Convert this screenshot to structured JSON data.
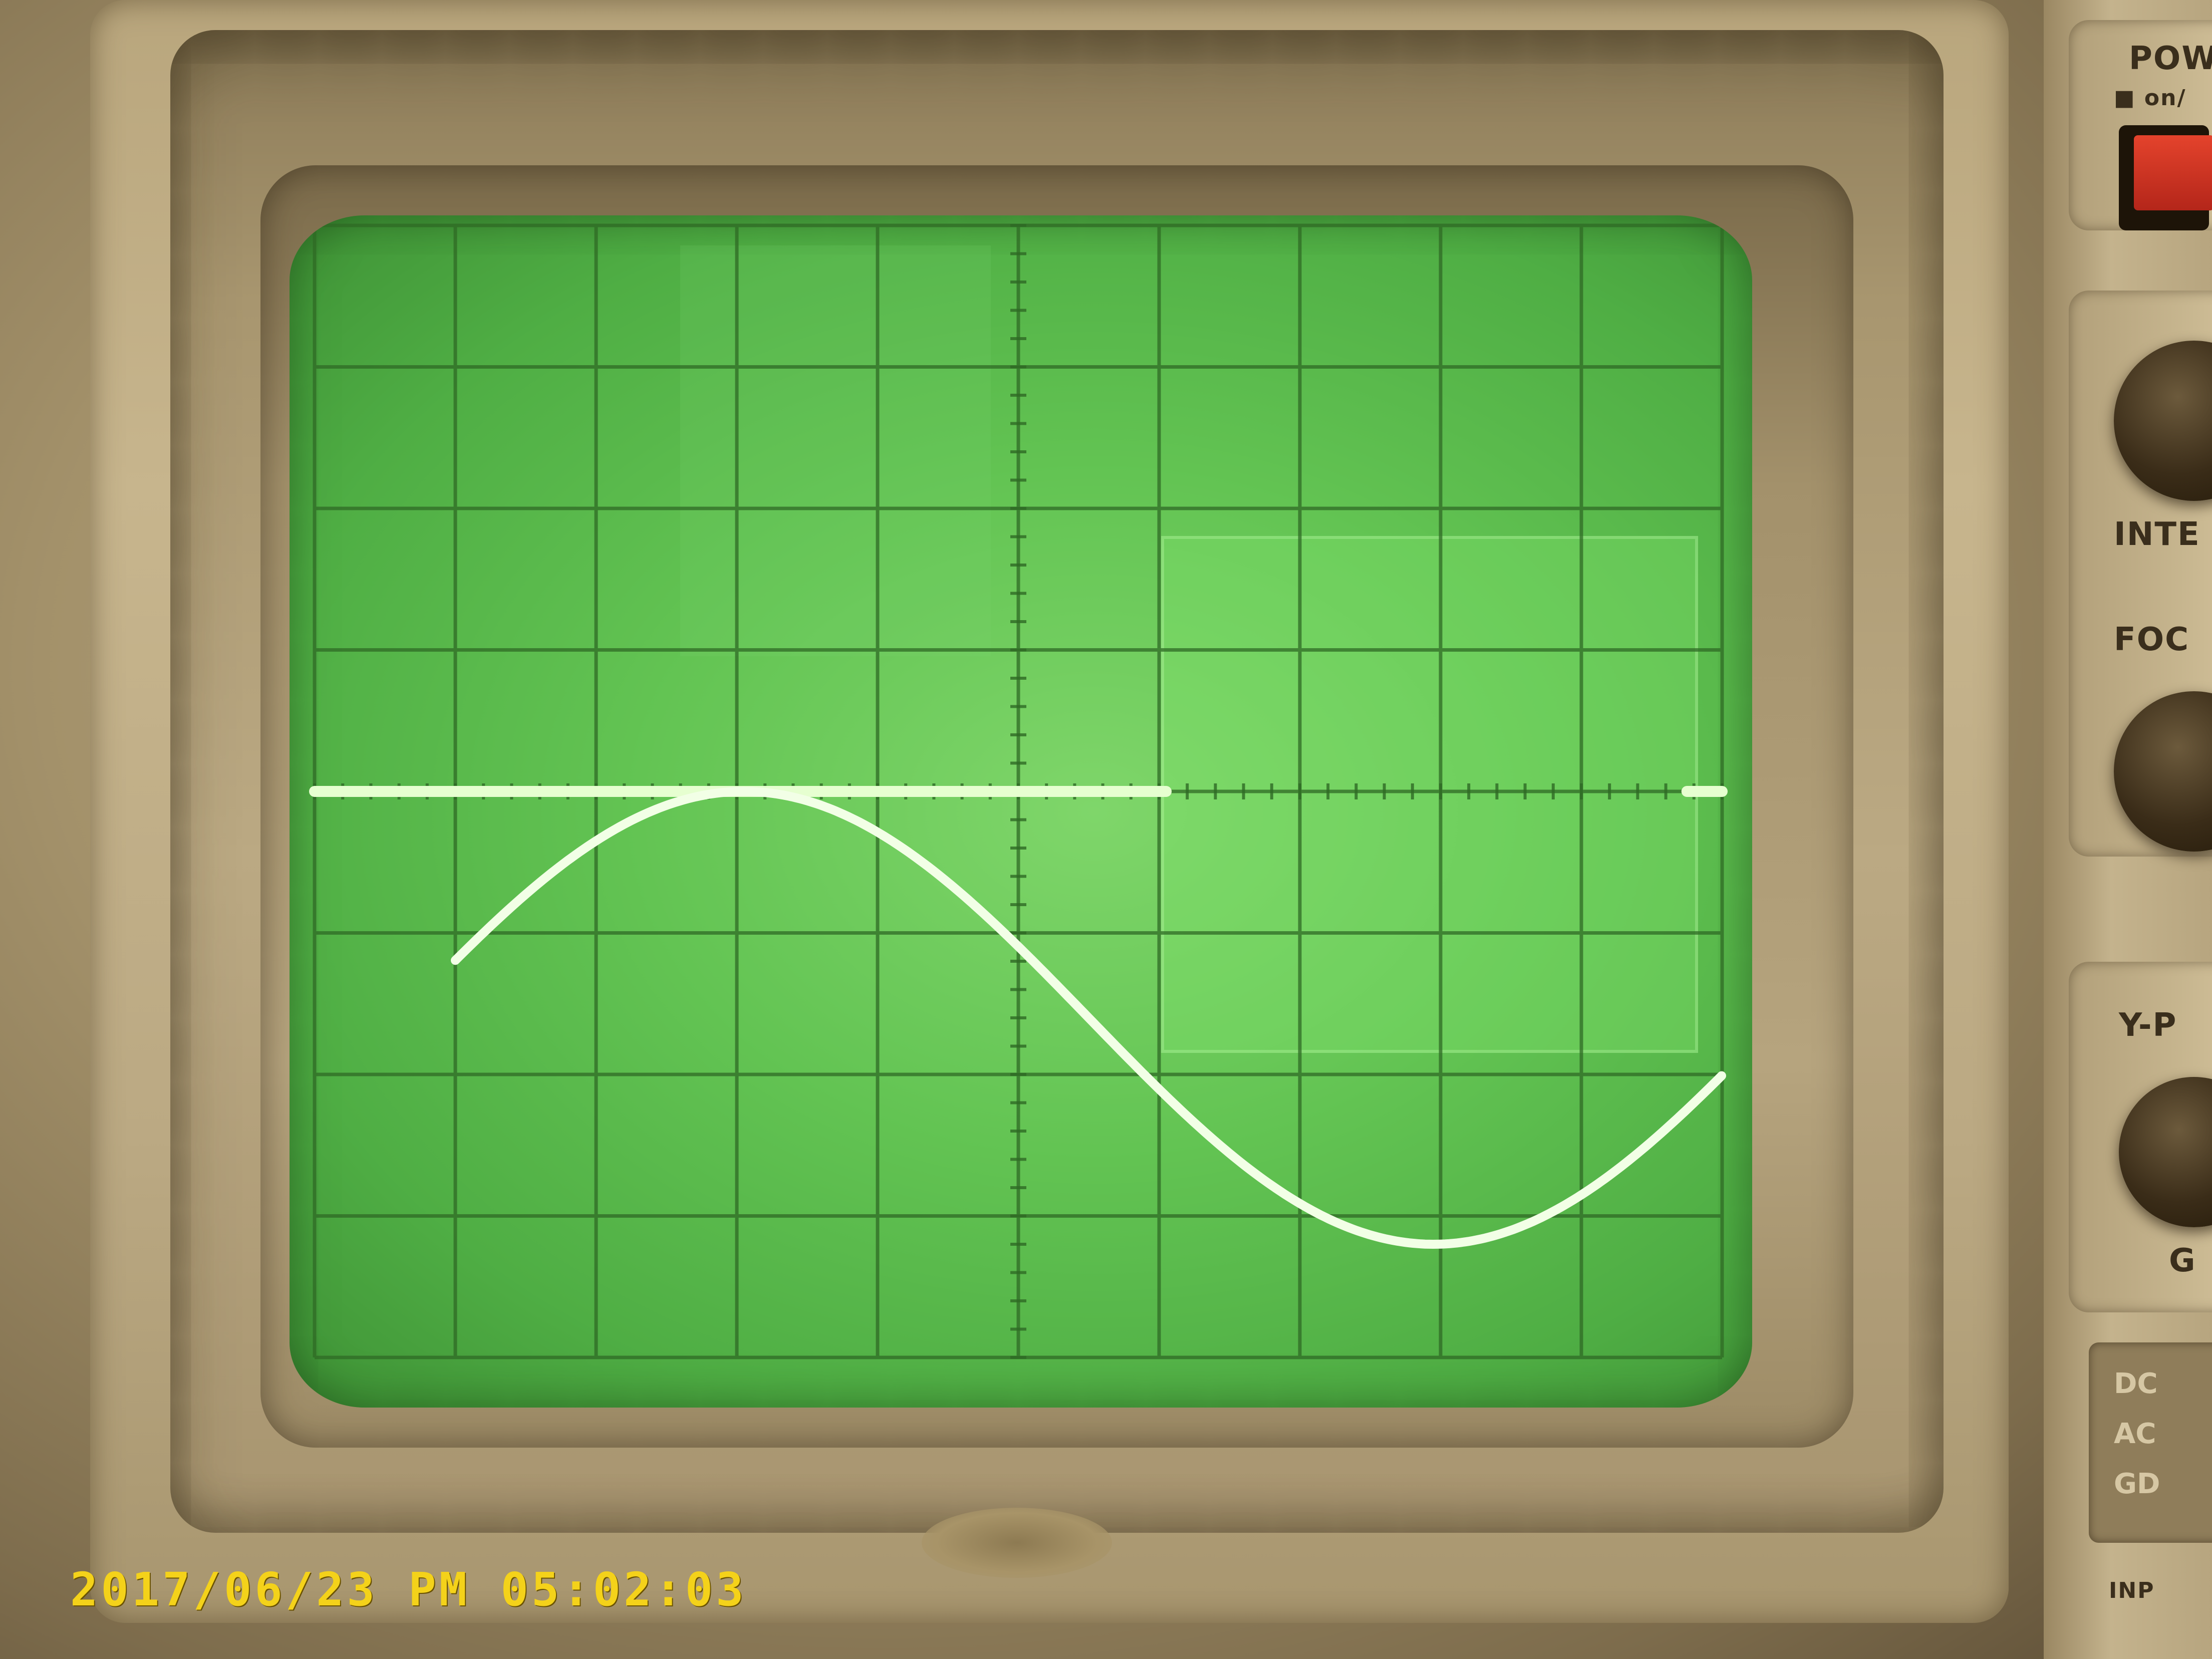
{
  "overlay": {
    "timestamp": "2017/06/23 PM 05:02:03"
  },
  "panel": {
    "power_label": "POW",
    "power_sub_label": "■ on/",
    "intensity_label": "INTE",
    "focus_label": "FOC",
    "y_position_label": "Y-P",
    "gnd_label": "G",
    "coupling_options": [
      "DC",
      "AC",
      "GD"
    ],
    "input_label": "INP"
  },
  "colors": {
    "phosphor": "#eaffd8",
    "screen": "#5fbf50",
    "timestamp": "#f4d21a",
    "power_button": "#d63a25"
  }
}
